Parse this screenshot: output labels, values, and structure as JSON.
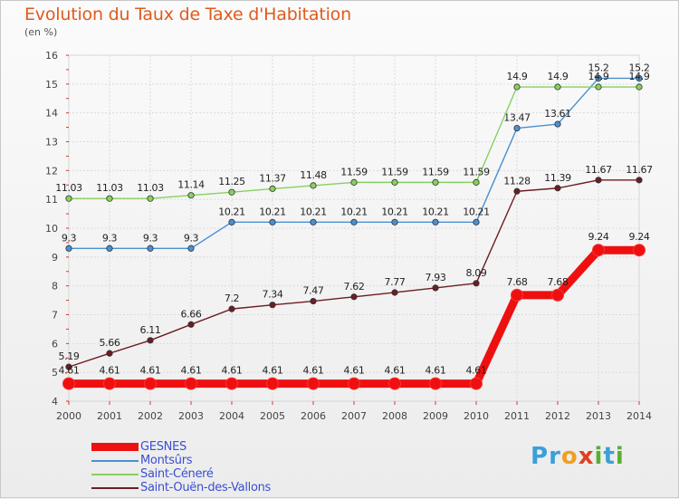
{
  "header": {
    "title": "Evolution du Taux de Taxe d'Habitation",
    "subtitle": "(en %)"
  },
  "logo": {
    "letters": [
      {
        "ch": "P",
        "color": "#3aa0d8"
      },
      {
        "ch": "r",
        "color": "#3aa0d8"
      },
      {
        "ch": "o",
        "color": "#f0a020"
      },
      {
        "ch": "x",
        "color": "#e04020"
      },
      {
        "ch": "i",
        "color": "#58b030"
      },
      {
        "ch": "t",
        "color": "#3aa0d8"
      },
      {
        "ch": "i",
        "color": "#58b030"
      }
    ]
  },
  "chart_data": {
    "type": "line",
    "title": "Evolution du Taux de Taxe d'Habitation",
    "subtitle": "(en %)",
    "x": [
      "2000",
      "2001",
      "2002",
      "2003",
      "2004",
      "2005",
      "2006",
      "2007",
      "2008",
      "2009",
      "2010",
      "2011",
      "2012",
      "2013",
      "2014"
    ],
    "ylim": [
      4,
      16
    ],
    "yticks": [
      "4",
      "5",
      "6",
      "7",
      "8",
      "9",
      "10",
      "11",
      "12",
      "13",
      "14",
      "15",
      "16"
    ],
    "grid": true,
    "legend_position": "bottom-left",
    "series": [
      {
        "name": "GESNES",
        "color": "#ee1010",
        "emphasis": true,
        "values": [
          4.61,
          4.61,
          4.61,
          4.61,
          4.61,
          4.61,
          4.61,
          4.61,
          4.61,
          4.61,
          4.61,
          7.68,
          7.68,
          9.24,
          9.24
        ],
        "labels": [
          "4.61",
          "4.61",
          "4.61",
          "4.61",
          "4.61",
          "4.61",
          "4.61",
          "4.61",
          "4.61",
          "4.61",
          "4.61",
          "7.68",
          "7.68",
          "9.24",
          "9.24"
        ]
      },
      {
        "name": "Montsûrs",
        "color": "#4a90d0",
        "values": [
          9.3,
          9.3,
          9.3,
          9.3,
          10.21,
          10.21,
          10.21,
          10.21,
          10.21,
          10.21,
          10.21,
          13.47,
          13.61,
          15.2,
          15.2
        ],
        "labels": [
          "9.3",
          "9.3",
          "9.3",
          "9.3",
          "10.21",
          "10.21",
          "10.21",
          "10.21",
          "10.21",
          "10.21",
          "10.21",
          "13.47",
          "13.61",
          "15.2",
          "15.2"
        ]
      },
      {
        "name": "Saint-Céneré",
        "color": "#88d060",
        "values": [
          11.03,
          11.03,
          11.03,
          11.14,
          11.25,
          11.37,
          11.48,
          11.59,
          11.59,
          11.59,
          11.59,
          14.9,
          14.9,
          14.9,
          14.9
        ],
        "labels": [
          "11.03",
          "11.03",
          "11.03",
          "11.14",
          "11.25",
          "11.37",
          "11.48",
          "11.59",
          "11.59",
          "11.59",
          "11.59",
          "14.9",
          "14.9",
          "14.9",
          "14.9"
        ]
      },
      {
        "name": "Saint-Ouën-des-Vallons",
        "color": "#6b1e22",
        "values": [
          5.19,
          5.66,
          6.11,
          6.66,
          7.2,
          7.34,
          7.47,
          7.62,
          7.77,
          7.93,
          8.09,
          11.28,
          11.39,
          11.67,
          11.67
        ],
        "labels": [
          "5.19",
          "5.66",
          "6.11",
          "6.66",
          "7.2",
          "7.34",
          "7.47",
          "7.62",
          "7.77",
          "7.93",
          "8.09",
          "11.28",
          "11.39",
          "11.67",
          "11.67"
        ]
      }
    ]
  }
}
